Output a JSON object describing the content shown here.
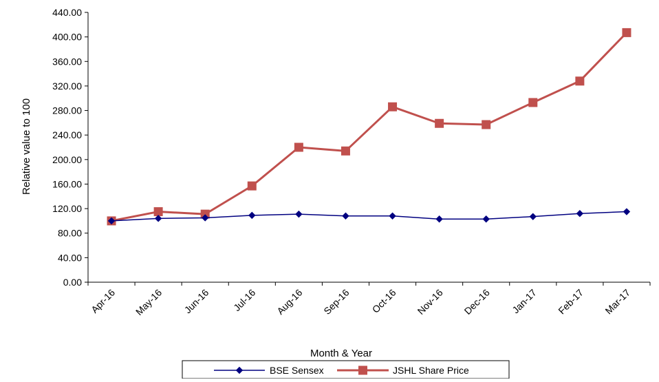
{
  "chart_data": {
    "type": "line",
    "title": "",
    "xlabel": "Month & Year",
    "ylabel": "Relative value to 100",
    "categories": [
      "Apr-16",
      "May-16",
      "Jun-16",
      "Jul-16",
      "Aug-16",
      "Sep-16",
      "Oct-16",
      "Nov-16",
      "Dec-16",
      "Jan-17",
      "Feb-17",
      "Mar-17"
    ],
    "ylim": [
      0,
      440
    ],
    "yticks": [
      "0.00",
      "40.00",
      "80.00",
      "120.00",
      "160.00",
      "200.00",
      "240.00",
      "280.00",
      "320.00",
      "360.00",
      "400.00",
      "440.00"
    ],
    "grid": false,
    "legend_position": "bottom",
    "series": [
      {
        "name": "BSE Sensex",
        "color": "#000080",
        "marker": "diamond",
        "values": [
          100,
          104,
          105,
          109,
          111,
          108,
          108,
          103,
          103,
          107,
          112,
          115
        ]
      },
      {
        "name": "JSHL Share Price",
        "color": "#C0504D",
        "marker": "square",
        "values": [
          100,
          115,
          111,
          157,
          220,
          214,
          286,
          259,
          257,
          293,
          328,
          407
        ]
      }
    ]
  }
}
